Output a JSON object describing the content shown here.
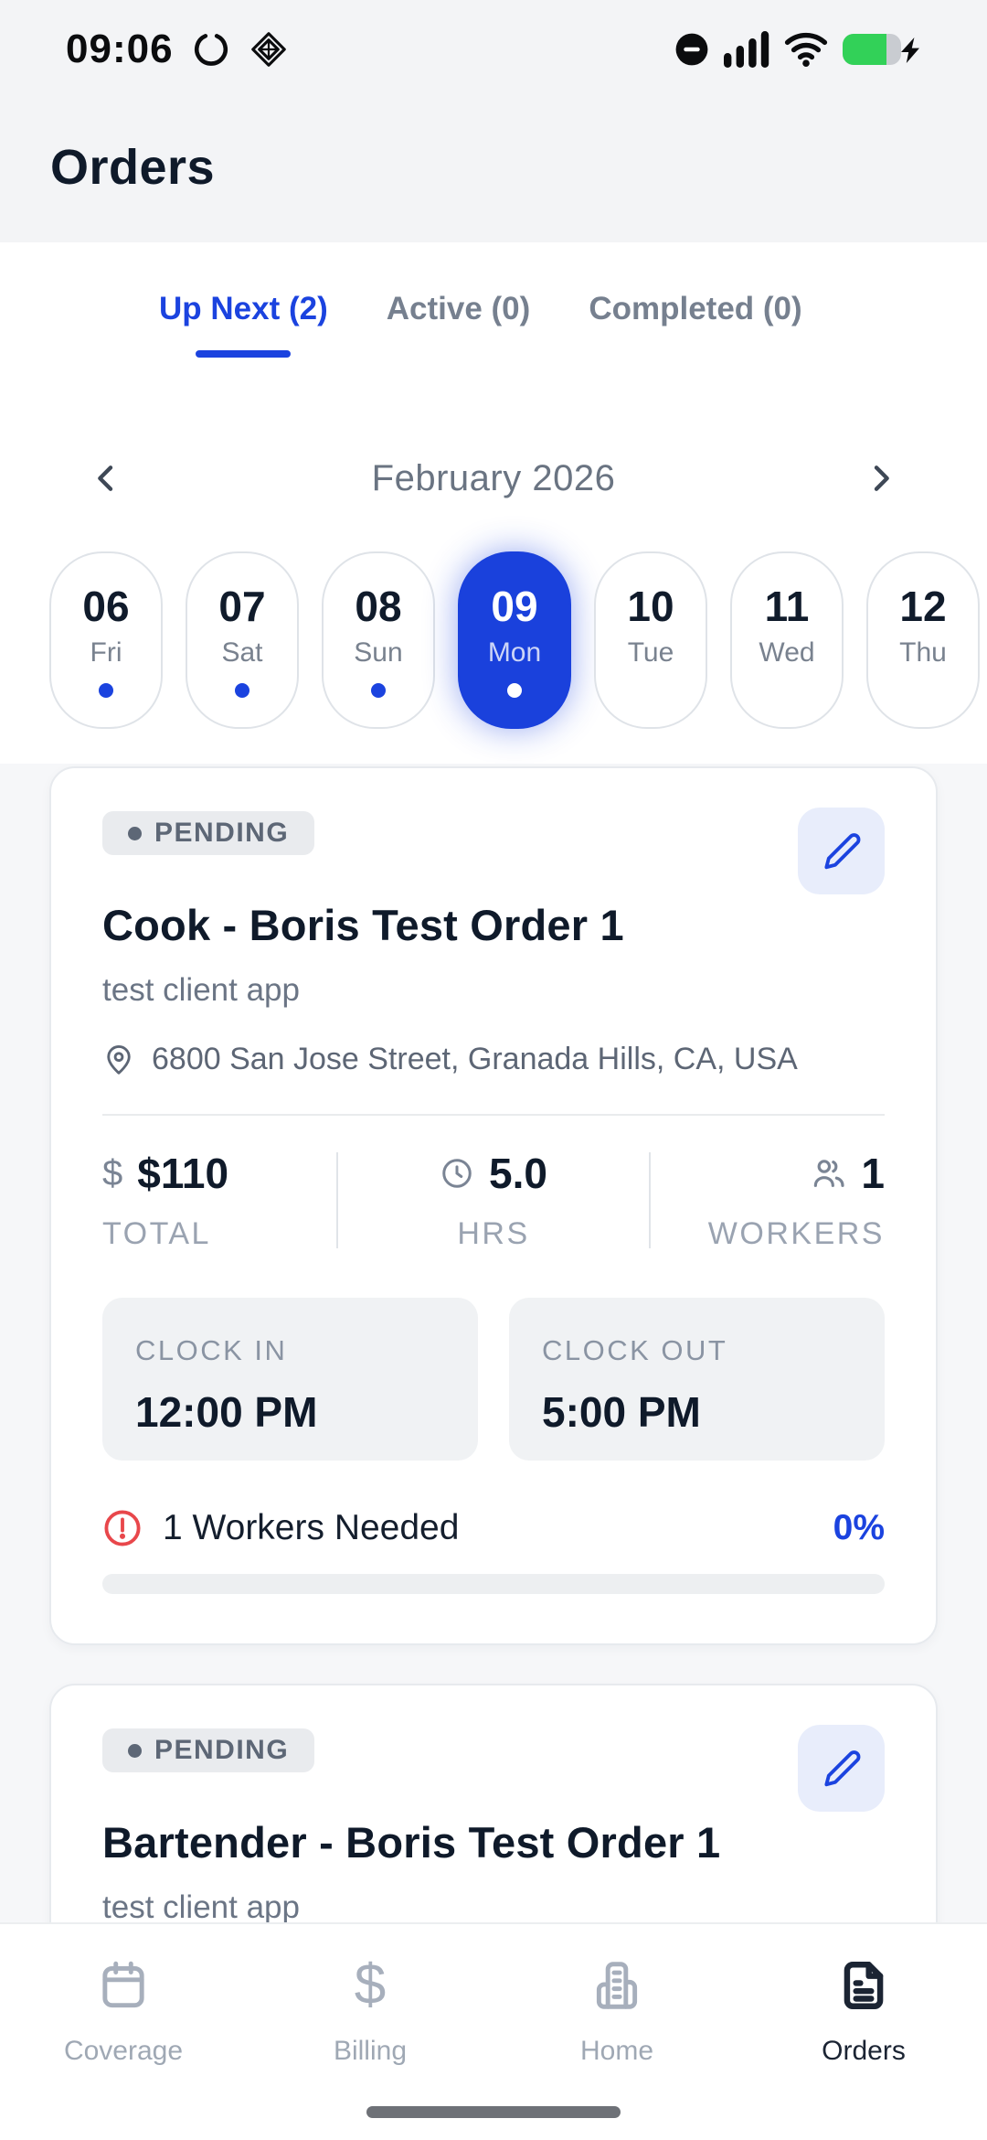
{
  "status_bar": {
    "time": "09:06",
    "left_icons": [
      "activity-spinner-icon",
      "diamond-widget-icon"
    ],
    "right_icons": [
      "do-not-disturb-icon",
      "cellular-signal-icon",
      "wifi-icon",
      "battery-charging-icon"
    ]
  },
  "header": {
    "title": "Orders"
  },
  "tabs": [
    {
      "label": "Up Next (2)",
      "active": true
    },
    {
      "label": "Active (0)",
      "active": false
    },
    {
      "label": "Completed (0)",
      "active": false
    }
  ],
  "calendar": {
    "month_label": "February 2026",
    "prev_icon": "chevron-left-icon",
    "next_icon": "chevron-right-icon",
    "days": [
      {
        "date": "06",
        "day": "Fri",
        "dot": true,
        "selected": false
      },
      {
        "date": "07",
        "day": "Sat",
        "dot": true,
        "selected": false
      },
      {
        "date": "08",
        "day": "Sun",
        "dot": true,
        "selected": false
      },
      {
        "date": "09",
        "day": "Mon",
        "dot": true,
        "selected": true
      },
      {
        "date": "10",
        "day": "Tue",
        "dot": false,
        "selected": false
      },
      {
        "date": "11",
        "day": "Wed",
        "dot": false,
        "selected": false
      },
      {
        "date": "12",
        "day": "Thu",
        "dot": false,
        "selected": false
      }
    ]
  },
  "orders": [
    {
      "status_label": "PENDING",
      "title": "Cook - Boris Test Order 1",
      "client": "test client app",
      "address": "6800 San Jose Street, Granada Hills, CA, USA",
      "total_value": "$110",
      "total_label": "TOTAL",
      "hours_value": "5.0",
      "hours_label": "HRS",
      "workers_value": "1",
      "workers_label": "WORKERS",
      "clock_in_label": "CLOCK IN",
      "clock_in_value": "12:00 PM",
      "clock_out_label": "CLOCK OUT",
      "clock_out_value": "5:00 PM",
      "workers_needed": "1 Workers Needed",
      "fill_percent": "0%",
      "progress_percent": 0
    },
    {
      "status_label": "PENDING",
      "title": "Bartender - Boris Test Order 1",
      "client": "test client app"
    }
  ],
  "bottom_nav": {
    "items": [
      {
        "label": "Coverage",
        "icon": "calendar-icon",
        "active": false
      },
      {
        "label": "Billing",
        "icon": "dollar-icon",
        "active": false
      },
      {
        "label": "Home",
        "icon": "building-icon",
        "active": false
      },
      {
        "label": "Orders",
        "icon": "document-icon",
        "active": true
      }
    ]
  },
  "glyphs": {
    "dollar": "$"
  },
  "colors": {
    "primary_blue": "#1B43DF",
    "dark_text": "#0F1A2A",
    "muted_text": "#6B7585",
    "badge_bg": "#E9EBEE",
    "alert_red": "#E8474B",
    "battery_green": "#32D158",
    "header_bg": "#F3F4F6",
    "cards_bg": "#F6F7F9"
  }
}
